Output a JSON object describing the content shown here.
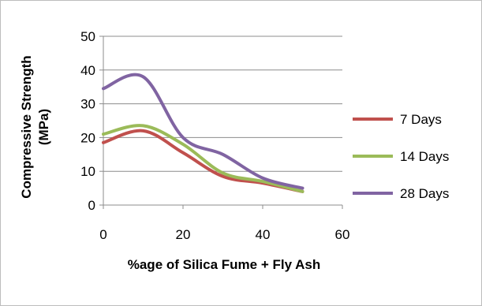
{
  "chart_data": {
    "type": "line",
    "smooth": true,
    "xlabel": "%age of Silica Fume + Fly Ash",
    "ylabel_lines": [
      "Compressive Strength",
      "(MPa)"
    ],
    "xlim": [
      0,
      60
    ],
    "ylim": [
      0,
      50
    ],
    "xticks": [
      0,
      20,
      40,
      60
    ],
    "yticks": [
      0,
      10,
      20,
      30,
      40,
      50
    ],
    "grid": "horizontal",
    "legend_position": "right",
    "series": [
      {
        "name": "7 Days",
        "color": "#c0504d",
        "x": [
          0,
          10,
          20,
          30,
          40,
          50
        ],
        "y": [
          18.5,
          22,
          15.5,
          8.5,
          6.5,
          4
        ]
      },
      {
        "name": "14 Days",
        "color": "#9bbb59",
        "x": [
          0,
          10,
          20,
          30,
          40,
          50
        ],
        "y": [
          21,
          23.5,
          18,
          9.5,
          7,
          4
        ]
      },
      {
        "name": "28 Days",
        "color": "#8064a2",
        "x": [
          0,
          10,
          20,
          30,
          40,
          50
        ],
        "y": [
          34.5,
          38,
          20,
          15,
          8,
          5
        ]
      }
    ]
  }
}
